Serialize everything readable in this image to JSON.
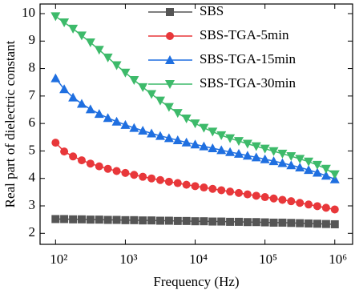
{
  "chart_data": {
    "type": "line",
    "xlabel": "Frequency (Hz)",
    "ylabel": "Real part of dielectric constant",
    "x": [
      100,
      133,
      178,
      237,
      316,
      422,
      562,
      750,
      1000,
      1334,
      1778,
      2371,
      3162,
      4217,
      5623,
      7499,
      10000,
      13335,
      17783,
      23714,
      31623,
      42170,
      56234,
      74989,
      100000,
      133352,
      177828,
      237137,
      316228,
      421697,
      562341,
      749894,
      1000000
    ],
    "xlog": true,
    "xlim": [
      60,
      1800000
    ],
    "xticks": [
      {
        "value": 100,
        "label": "10²"
      },
      {
        "value": 1000,
        "label": "10³"
      },
      {
        "value": 10000,
        "label": "10⁴"
      },
      {
        "value": 100000,
        "label": "10⁵"
      },
      {
        "value": 1000000,
        "label": "10⁶"
      }
    ],
    "ylim": [
      1.6,
      10.35
    ],
    "yticks": [
      2,
      3,
      4,
      5,
      6,
      7,
      8,
      9,
      10
    ],
    "legend": "upper-right",
    "series": [
      {
        "name": "SBS",
        "color": "#555555",
        "marker": "square",
        "values": [
          2.52,
          2.52,
          2.51,
          2.51,
          2.5,
          2.5,
          2.49,
          2.49,
          2.48,
          2.48,
          2.47,
          2.47,
          2.46,
          2.46,
          2.45,
          2.45,
          2.44,
          2.44,
          2.43,
          2.43,
          2.42,
          2.42,
          2.41,
          2.41,
          2.4,
          2.39,
          2.39,
          2.38,
          2.37,
          2.36,
          2.35,
          2.34,
          2.33
        ]
      },
      {
        "name": "SBS-TGA-5min",
        "color": "#e8373a",
        "marker": "circle",
        "values": [
          5.3,
          4.98,
          4.8,
          4.66,
          4.54,
          4.44,
          4.35,
          4.27,
          4.2,
          4.13,
          4.06,
          4.0,
          3.94,
          3.88,
          3.83,
          3.77,
          3.72,
          3.67,
          3.62,
          3.57,
          3.52,
          3.47,
          3.42,
          3.37,
          3.32,
          3.27,
          3.22,
          3.17,
          3.11,
          3.05,
          2.99,
          2.93,
          2.87
        ]
      },
      {
        "name": "SBS-TGA-15min",
        "color": "#1f6fe0",
        "marker": "triangle-up",
        "values": [
          7.65,
          7.25,
          6.95,
          6.72,
          6.52,
          6.35,
          6.2,
          6.07,
          5.95,
          5.84,
          5.74,
          5.64,
          5.55,
          5.47,
          5.39,
          5.31,
          5.24,
          5.17,
          5.1,
          5.03,
          4.96,
          4.9,
          4.83,
          4.77,
          4.7,
          4.63,
          4.56,
          4.48,
          4.4,
          4.31,
          4.21,
          4.1,
          3.97
        ]
      },
      {
        "name": "SBS-TGA-30min",
        "color": "#3dba6a",
        "marker": "triangle-down",
        "values": [
          9.9,
          9.68,
          9.45,
          9.2,
          8.95,
          8.68,
          8.4,
          8.12,
          7.85,
          7.58,
          7.32,
          7.07,
          6.83,
          6.6,
          6.38,
          6.18,
          6.0,
          5.84,
          5.7,
          5.57,
          5.46,
          5.36,
          5.26,
          5.17,
          5.08,
          4.99,
          4.9,
          4.81,
          4.71,
          4.61,
          4.49,
          4.35,
          4.15
        ]
      }
    ]
  }
}
